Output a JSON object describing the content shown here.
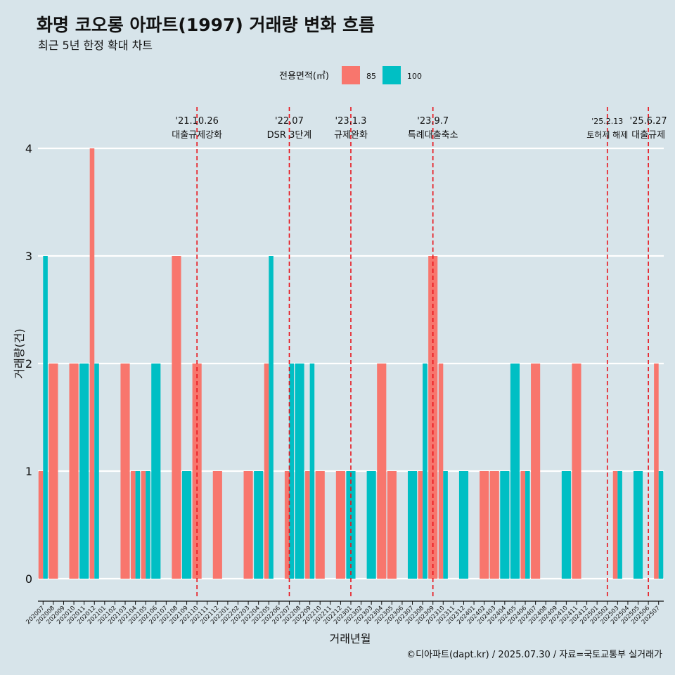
{
  "chart_data": {
    "type": "bar",
    "title": "화명 코오롱 아파트(1997) 거래량 변화 흐름",
    "subtitle": "최근 5년 한정 확대 차트",
    "xlabel": "거래년월",
    "ylabel": "거래량(건)",
    "ylim": [
      0,
      4
    ],
    "yticks": [
      "0",
      "1",
      "2",
      "3",
      "4"
    ],
    "legend": {
      "title": "전용면적(㎡)",
      "position": "top",
      "entries": [
        "85",
        "100"
      ]
    },
    "colors": {
      "85": "#f8766d",
      "100": "#00bfc4"
    },
    "caption": "©디아파트(dapt.kr) / 2025.07.30 / 자료=국토교통부 실거래가",
    "categories": [
      "202007",
      "202008",
      "202009",
      "202010",
      "202011",
      "202012",
      "202101",
      "202102",
      "202103",
      "202104",
      "202105",
      "202106",
      "202107",
      "202108",
      "202109",
      "202110",
      "202111",
      "202112",
      "202201",
      "202202",
      "202203",
      "202204",
      "202205",
      "202206",
      "202207",
      "202208",
      "202209",
      "202210",
      "202211",
      "202212",
      "202301",
      "202302",
      "202303",
      "202304",
      "202305",
      "202306",
      "202307",
      "202308",
      "202309",
      "202310",
      "202311",
      "202312",
      "202401",
      "202402",
      "202403",
      "202404",
      "202405",
      "202406",
      "202407",
      "202408",
      "202409",
      "202410",
      "202411",
      "202412",
      "202501",
      "202502",
      "202503",
      "202504",
      "202505",
      "202506",
      "202507"
    ],
    "series": [
      {
        "name": "85",
        "values": [
          1,
          2,
          0,
          2,
          0,
          4,
          0,
          0,
          2,
          1,
          1,
          0,
          0,
          3,
          0,
          2,
          0,
          1,
          0,
          0,
          1,
          0,
          2,
          0,
          1,
          0,
          1,
          1,
          0,
          1,
          0,
          0,
          0,
          2,
          1,
          0,
          0,
          1,
          3,
          2,
          0,
          0,
          0,
          1,
          1,
          0,
          0,
          1,
          2,
          0,
          0,
          0,
          2,
          0,
          0,
          0,
          1,
          0,
          0,
          0,
          2
        ]
      },
      {
        "name": "100",
        "values": [
          3,
          0,
          0,
          0,
          2,
          2,
          0,
          0,
          0,
          1,
          1,
          2,
          0,
          0,
          1,
          0,
          0,
          0,
          0,
          0,
          0,
          1,
          3,
          0,
          2,
          2,
          2,
          0,
          0,
          0,
          1,
          0,
          1,
          0,
          0,
          0,
          1,
          2,
          0,
          1,
          0,
          1,
          0,
          0,
          0,
          1,
          2,
          1,
          0,
          0,
          0,
          1,
          0,
          0,
          0,
          0,
          1,
          0,
          1,
          0,
          1
        ]
      }
    ],
    "annotations": [
      {
        "date": "'21.10.26",
        "label": "대출규제강화",
        "at": "202110"
      },
      {
        "date": "'22.07",
        "label": "DSR 3단계",
        "at": "202207"
      },
      {
        "date": "'23.1.3",
        "label": "규제완화",
        "at": "202301"
      },
      {
        "date": "'23.9.7",
        "label": "특례대출축소",
        "at": "202309"
      },
      {
        "date": "'25.2.13",
        "label": "토허제 해제",
        "at": "202502"
      },
      {
        "date": "'25.6.27",
        "label": "대출규제",
        "at": "202506"
      }
    ]
  }
}
